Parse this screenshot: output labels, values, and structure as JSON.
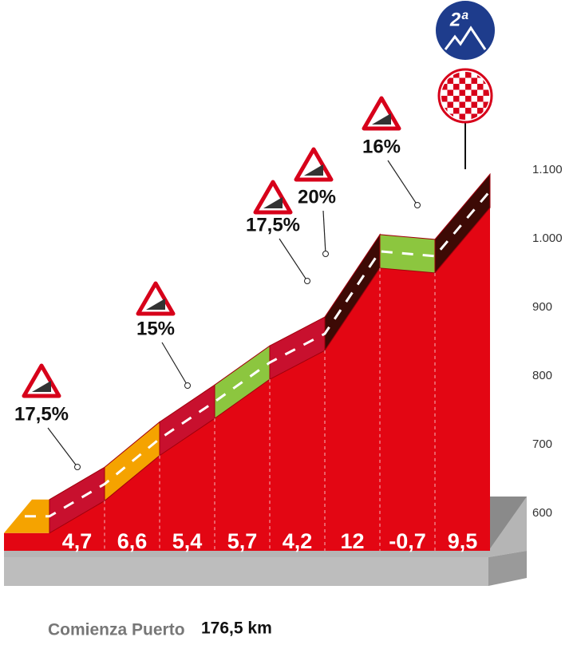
{
  "chart_data": {
    "type": "climb-profile",
    "badge": "2ª",
    "start_label": "Comienza Puerto",
    "start_km": "176,5 km",
    "ylim": [
      600,
      1100
    ],
    "yticks": [
      600,
      700,
      800,
      900,
      {
        "value": 1000,
        "label": "1.000"
      },
      {
        "value": 1100,
        "label": "1.100"
      }
    ],
    "altitudes": [
      620,
      667,
      733,
      787,
      844,
      886,
      1006,
      999,
      1094
    ],
    "segments": {
      "values": [
        4.7,
        6.6,
        5.4,
        5.7,
        4.2,
        12,
        -0.7,
        9.5
      ],
      "value_labels": [
        "4,7",
        "6,6",
        "5,4",
        "5,7",
        "4,2",
        "12",
        "-0,7",
        "9,5"
      ],
      "colors": [
        "#c8102e",
        "#f5a300",
        "#c8102e",
        "#8cc63f",
        "#c8102e",
        "#3d0a05",
        "#8cc63f",
        "#3d0a05"
      ]
    },
    "max_gradients": [
      "17,5%",
      "15%",
      "17,5%",
      "20%",
      "16%"
    ],
    "profile_color": "#e30613",
    "start_color": "#f5a300"
  }
}
